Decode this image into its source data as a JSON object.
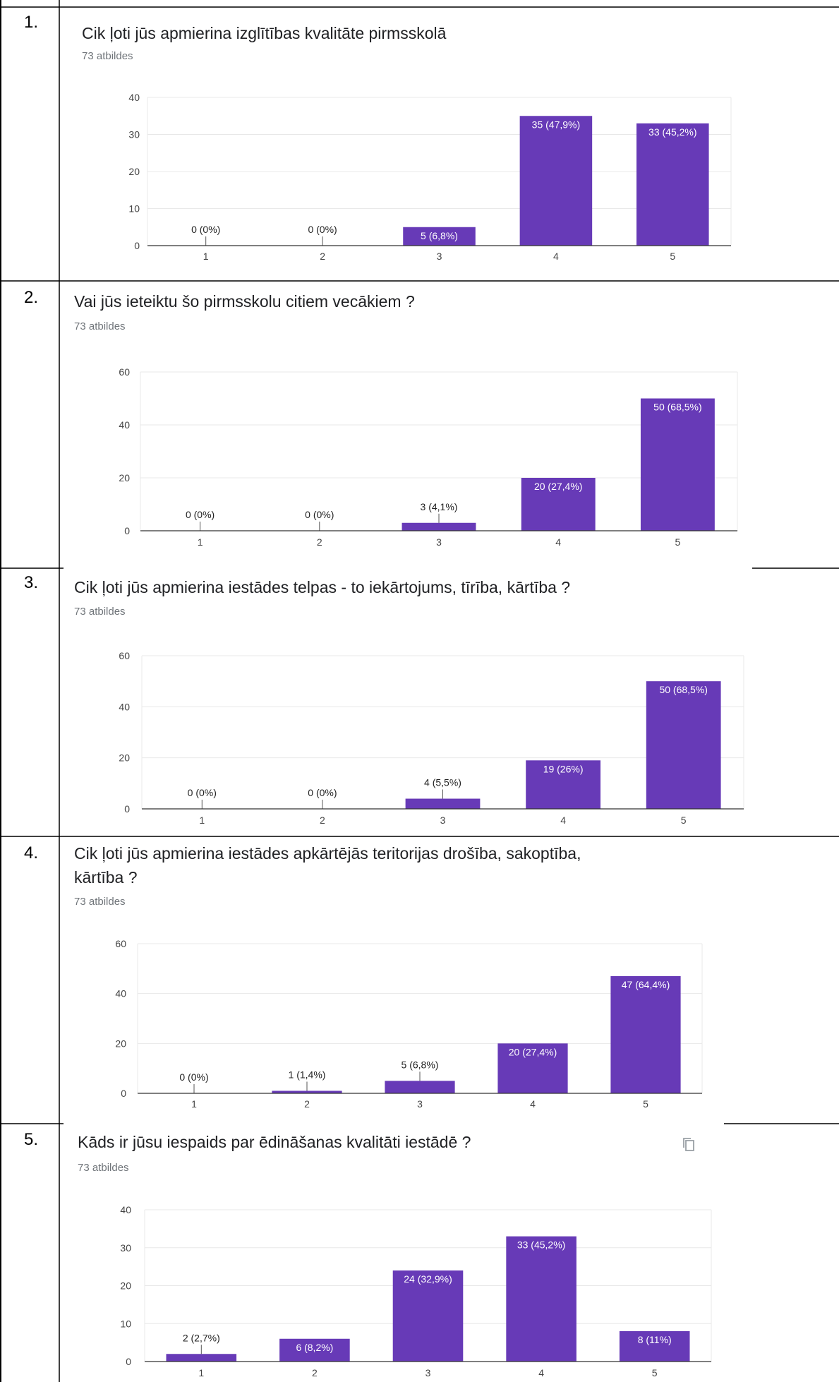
{
  "colors": {
    "bar": "#673ab7",
    "border": "#000000",
    "grid": "#e8e8e8",
    "axis": "#333333"
  },
  "responses_label": "73 atbildes",
  "questions": [
    {
      "number": "1.",
      "title_lines": [
        "Cik ļoti jūs apmierina izglītības kvalitāte pirmsskolā"
      ],
      "responses": "73 atbildes",
      "has_copy_icon": false,
      "chart_data": {
        "type": "bar",
        "categories": [
          "1",
          "2",
          "3",
          "4",
          "5"
        ],
        "values": [
          0,
          0,
          5,
          35,
          33
        ],
        "labels": [
          "0 (0%)",
          "0 (0%)",
          "5 (6,8%)",
          "35 (47,9%)",
          "33 (45,2%)"
        ],
        "yticks": [
          0,
          10,
          20,
          30,
          40
        ],
        "ylim": [
          0,
          40
        ]
      }
    },
    {
      "number": "2.",
      "title_lines": [
        "Vai jūs ieteiktu šo pirmsskolu citiem vecākiem ?"
      ],
      "responses": "73 atbildes",
      "has_copy_icon": false,
      "chart_data": {
        "type": "bar",
        "categories": [
          "1",
          "2",
          "3",
          "4",
          "5"
        ],
        "values": [
          0,
          0,
          3,
          20,
          50
        ],
        "labels": [
          "0 (0%)",
          "0 (0%)",
          "3 (4,1%)",
          "20 (27,4%)",
          "50 (68,5%)"
        ],
        "yticks": [
          0,
          20,
          40,
          60
        ],
        "ylim": [
          0,
          60
        ]
      }
    },
    {
      "number": "3.",
      "title_lines": [
        "Cik ļoti jūs apmierina iestādes telpas - to iekārtojums, tīrība, kārtība ?"
      ],
      "responses": "73 atbildes",
      "has_copy_icon": false,
      "chart_data": {
        "type": "bar",
        "categories": [
          "1",
          "2",
          "3",
          "4",
          "5"
        ],
        "values": [
          0,
          0,
          4,
          19,
          50
        ],
        "labels": [
          "0 (0%)",
          "0 (0%)",
          "4 (5,5%)",
          "19 (26%)",
          "50 (68,5%)"
        ],
        "yticks": [
          0,
          20,
          40,
          60
        ],
        "ylim": [
          0,
          60
        ]
      }
    },
    {
      "number": "4.",
      "title_lines": [
        "Cik ļoti jūs apmierina iestādes apkārtējās teritorijas drošība, sakoptība,",
        "kārtība ?"
      ],
      "responses": "73 atbildes",
      "has_copy_icon": false,
      "chart_data": {
        "type": "bar",
        "categories": [
          "1",
          "2",
          "3",
          "4",
          "5"
        ],
        "values": [
          0,
          1,
          5,
          20,
          47
        ],
        "labels": [
          "0 (0%)",
          "1 (1,4%)",
          "5 (6,8%)",
          "20 (27,4%)",
          "47 (64,4%)"
        ],
        "yticks": [
          0,
          20,
          40,
          60
        ],
        "ylim": [
          0,
          60
        ]
      }
    },
    {
      "number": "5.",
      "title_lines": [
        "Kāds ir jūsu iespaids par ēdināšanas kvalitāti iestādē ?"
      ],
      "responses": "73 atbildes",
      "has_copy_icon": true,
      "copy_icon": "copy-icon",
      "chart_data": {
        "type": "bar",
        "categories": [
          "1",
          "2",
          "3",
          "4",
          "5"
        ],
        "values": [
          2,
          6,
          24,
          33,
          8
        ],
        "labels": [
          "2 (2,7%)",
          "6 (8,2%)",
          "24 (32,9%)",
          "33 (45,2%)",
          "8 (11%)"
        ],
        "yticks": [
          0,
          10,
          20,
          30,
          40
        ],
        "ylim": [
          0,
          40
        ]
      }
    }
  ]
}
